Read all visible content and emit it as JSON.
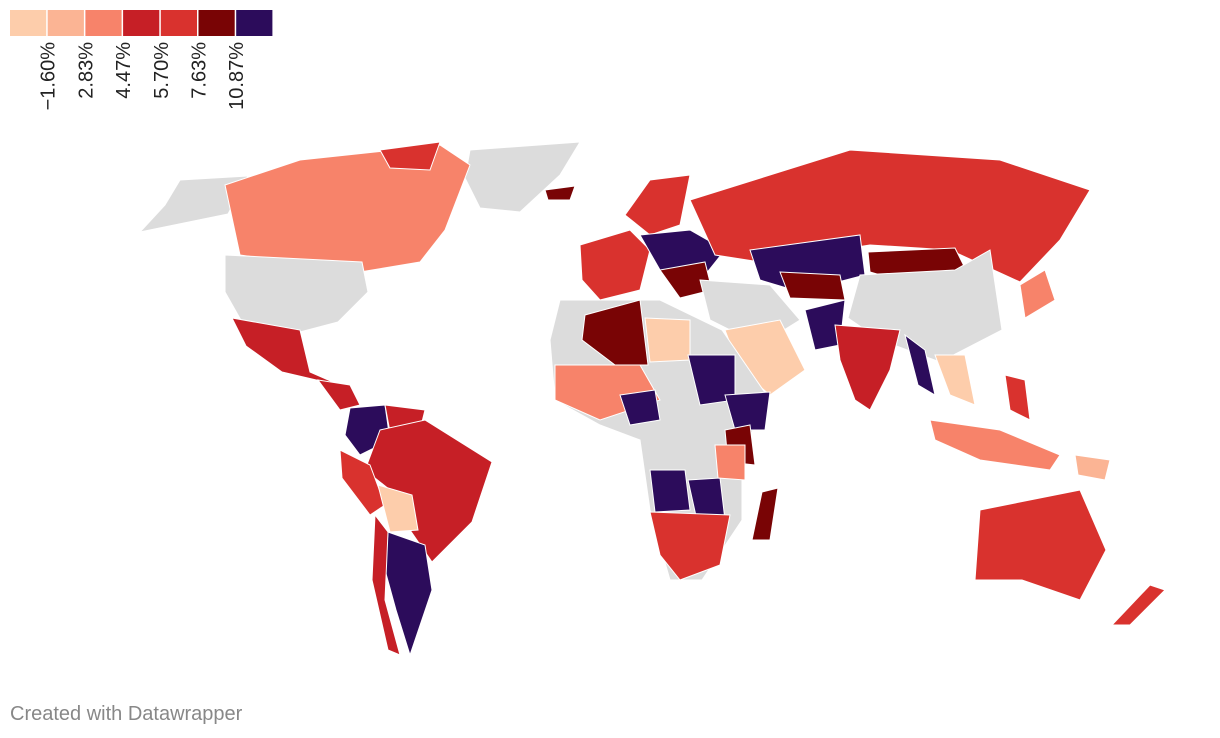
{
  "legend": {
    "colors": [
      "#fdcdab",
      "#fbb494",
      "#f7836a",
      "#c61f26",
      "#d9322e",
      "#790405",
      "#2c0c5b"
    ],
    "labels": [
      "−1.60%",
      "2.83%",
      "4.47%",
      "5.70%",
      "7.63%",
      "10.87%"
    ]
  },
  "footer": "Created with Datawrapper"
}
